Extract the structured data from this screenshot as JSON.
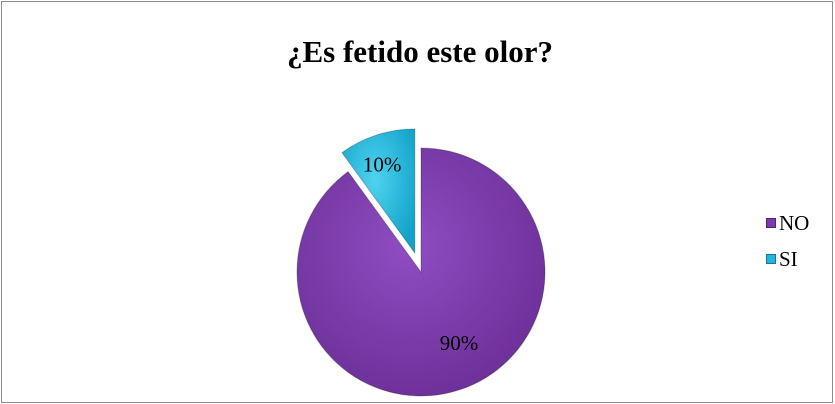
{
  "chart_data": {
    "type": "pie",
    "title": "¿Es fetido este olor?",
    "categories": [
      "NO",
      "SI"
    ],
    "values": [
      90,
      10
    ],
    "data_labels": [
      "90%",
      "10%"
    ],
    "colors": [
      "#7b3aab",
      "#1fb5dd"
    ],
    "exploded": [
      false,
      true
    ],
    "legend_position": "right",
    "legend": [
      {
        "label": "NO",
        "color": "#7b3aab"
      },
      {
        "label": "SI",
        "color": "#1fb5dd"
      }
    ]
  }
}
